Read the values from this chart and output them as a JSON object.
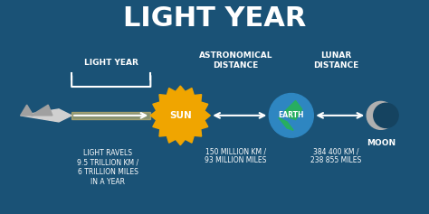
{
  "title": "LIGHT YEAR",
  "bg_color": "#1a5276",
  "bg_color2": "#154360",
  "text_color": "#ffffff",
  "title_fontsize": 22,
  "label_fontsize": 6.5,
  "body_fontsize": 5.5,
  "sun_color": "#f0a500",
  "sun_label": "SUN",
  "earth_label": "EARTH",
  "moon_label": "MOON",
  "light_year_label": "LIGHT YEAR",
  "astro_label": "ASTRONOMICAL\nDISTANCE",
  "lunar_label": "LUNAR\nDISTANCE",
  "light_text": "LIGHT RAVELS\n9.5 TRILLION KM /\n6 TRILLION MILES\nIN A YEAR",
  "astro_text": "150 MILLION KM /\n93 MILLION MILES",
  "lunar_text": "384 400 KM /\n238 855 MILES"
}
